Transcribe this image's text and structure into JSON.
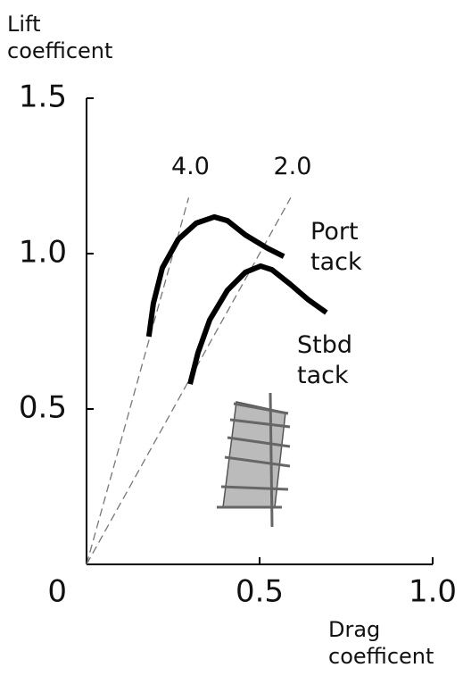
{
  "chart_data": {
    "type": "line",
    "y_label": "Lift coefficent",
    "x_label": "Drag coefficent",
    "xlim": [
      0,
      1
    ],
    "ylim": [
      0,
      1.5
    ],
    "xticks": [
      0,
      0.5,
      {
        "value": 1,
        "label": "1.0"
      }
    ],
    "yticks": [
      0.5,
      {
        "value": 1,
        "label": "1.0"
      },
      1.5
    ],
    "ld_lines": [
      {
        "value": 4,
        "label": "4.0"
      },
      {
        "value": 2,
        "label": "2.0"
      }
    ],
    "series": [
      {
        "name": "Port tack",
        "color": "#000000",
        "x": [
          0.18,
          0.193,
          0.219,
          0.265,
          0.317,
          0.369,
          0.407,
          0.459,
          0.523,
          0.57
        ],
        "values": [
          0.733,
          0.839,
          0.954,
          1.046,
          1.098,
          1.118,
          1.106,
          1.06,
          1.017,
          0.991
        ]
      },
      {
        "name": "Stbd tack",
        "color": "#000000",
        "x": [
          0.299,
          0.322,
          0.356,
          0.407,
          0.459,
          0.503,
          0.536,
          0.588,
          0.639,
          0.693
        ],
        "values": [
          0.58,
          0.681,
          0.787,
          0.882,
          0.94,
          0.96,
          0.948,
          0.902,
          0.853,
          0.81
        ]
      }
    ]
  }
}
